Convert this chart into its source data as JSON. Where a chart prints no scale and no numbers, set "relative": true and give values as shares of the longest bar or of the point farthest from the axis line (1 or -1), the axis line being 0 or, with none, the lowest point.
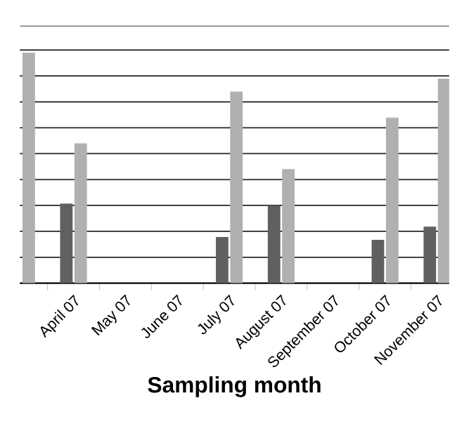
{
  "chart_data": {
    "type": "bar",
    "relative": true,
    "xlabel": "Sampling month",
    "grid": "y",
    "categories": [
      null,
      "April 07",
      "May 07",
      "June 07",
      "July 07",
      "August 07",
      "September 07",
      "October 07",
      "November 07"
    ],
    "series": [
      {
        "color": "#606060",
        "values": [
          null,
          0.345,
          null,
          null,
          0.2,
          0.336,
          null,
          0.188,
          0.245
        ]
      },
      {
        "color": "#b0b0b0",
        "values": [
          1,
          0.607,
          null,
          null,
          0.831,
          0.495,
          null,
          0.718,
          0.887
        ]
      }
    ]
  }
}
